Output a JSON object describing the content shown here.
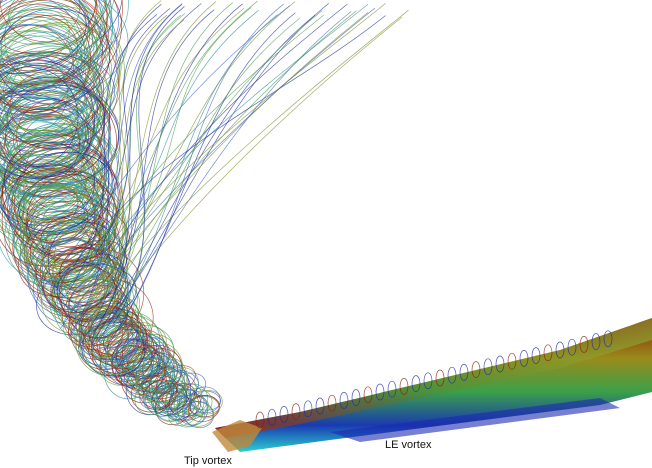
{
  "labels": {
    "tip_vortex": "Tip vortex",
    "le_vortex": "LE vortex"
  }
}
